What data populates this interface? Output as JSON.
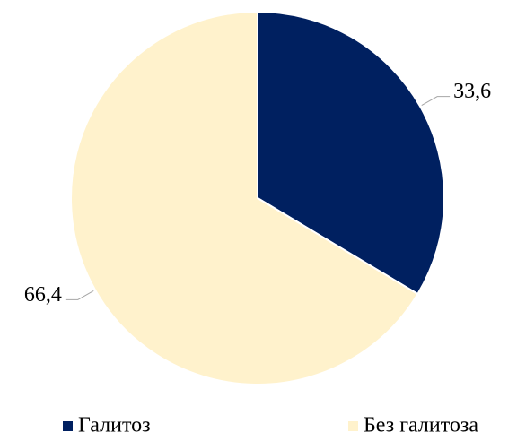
{
  "chart_data": {
    "type": "pie",
    "categories": [
      "Галитоз",
      "Без галитоза"
    ],
    "values": [
      33.6,
      66.4
    ],
    "value_labels": [
      "33,6",
      "66,4"
    ],
    "colors": [
      "#002060",
      "#fff2cc"
    ],
    "legend": "bottom"
  }
}
